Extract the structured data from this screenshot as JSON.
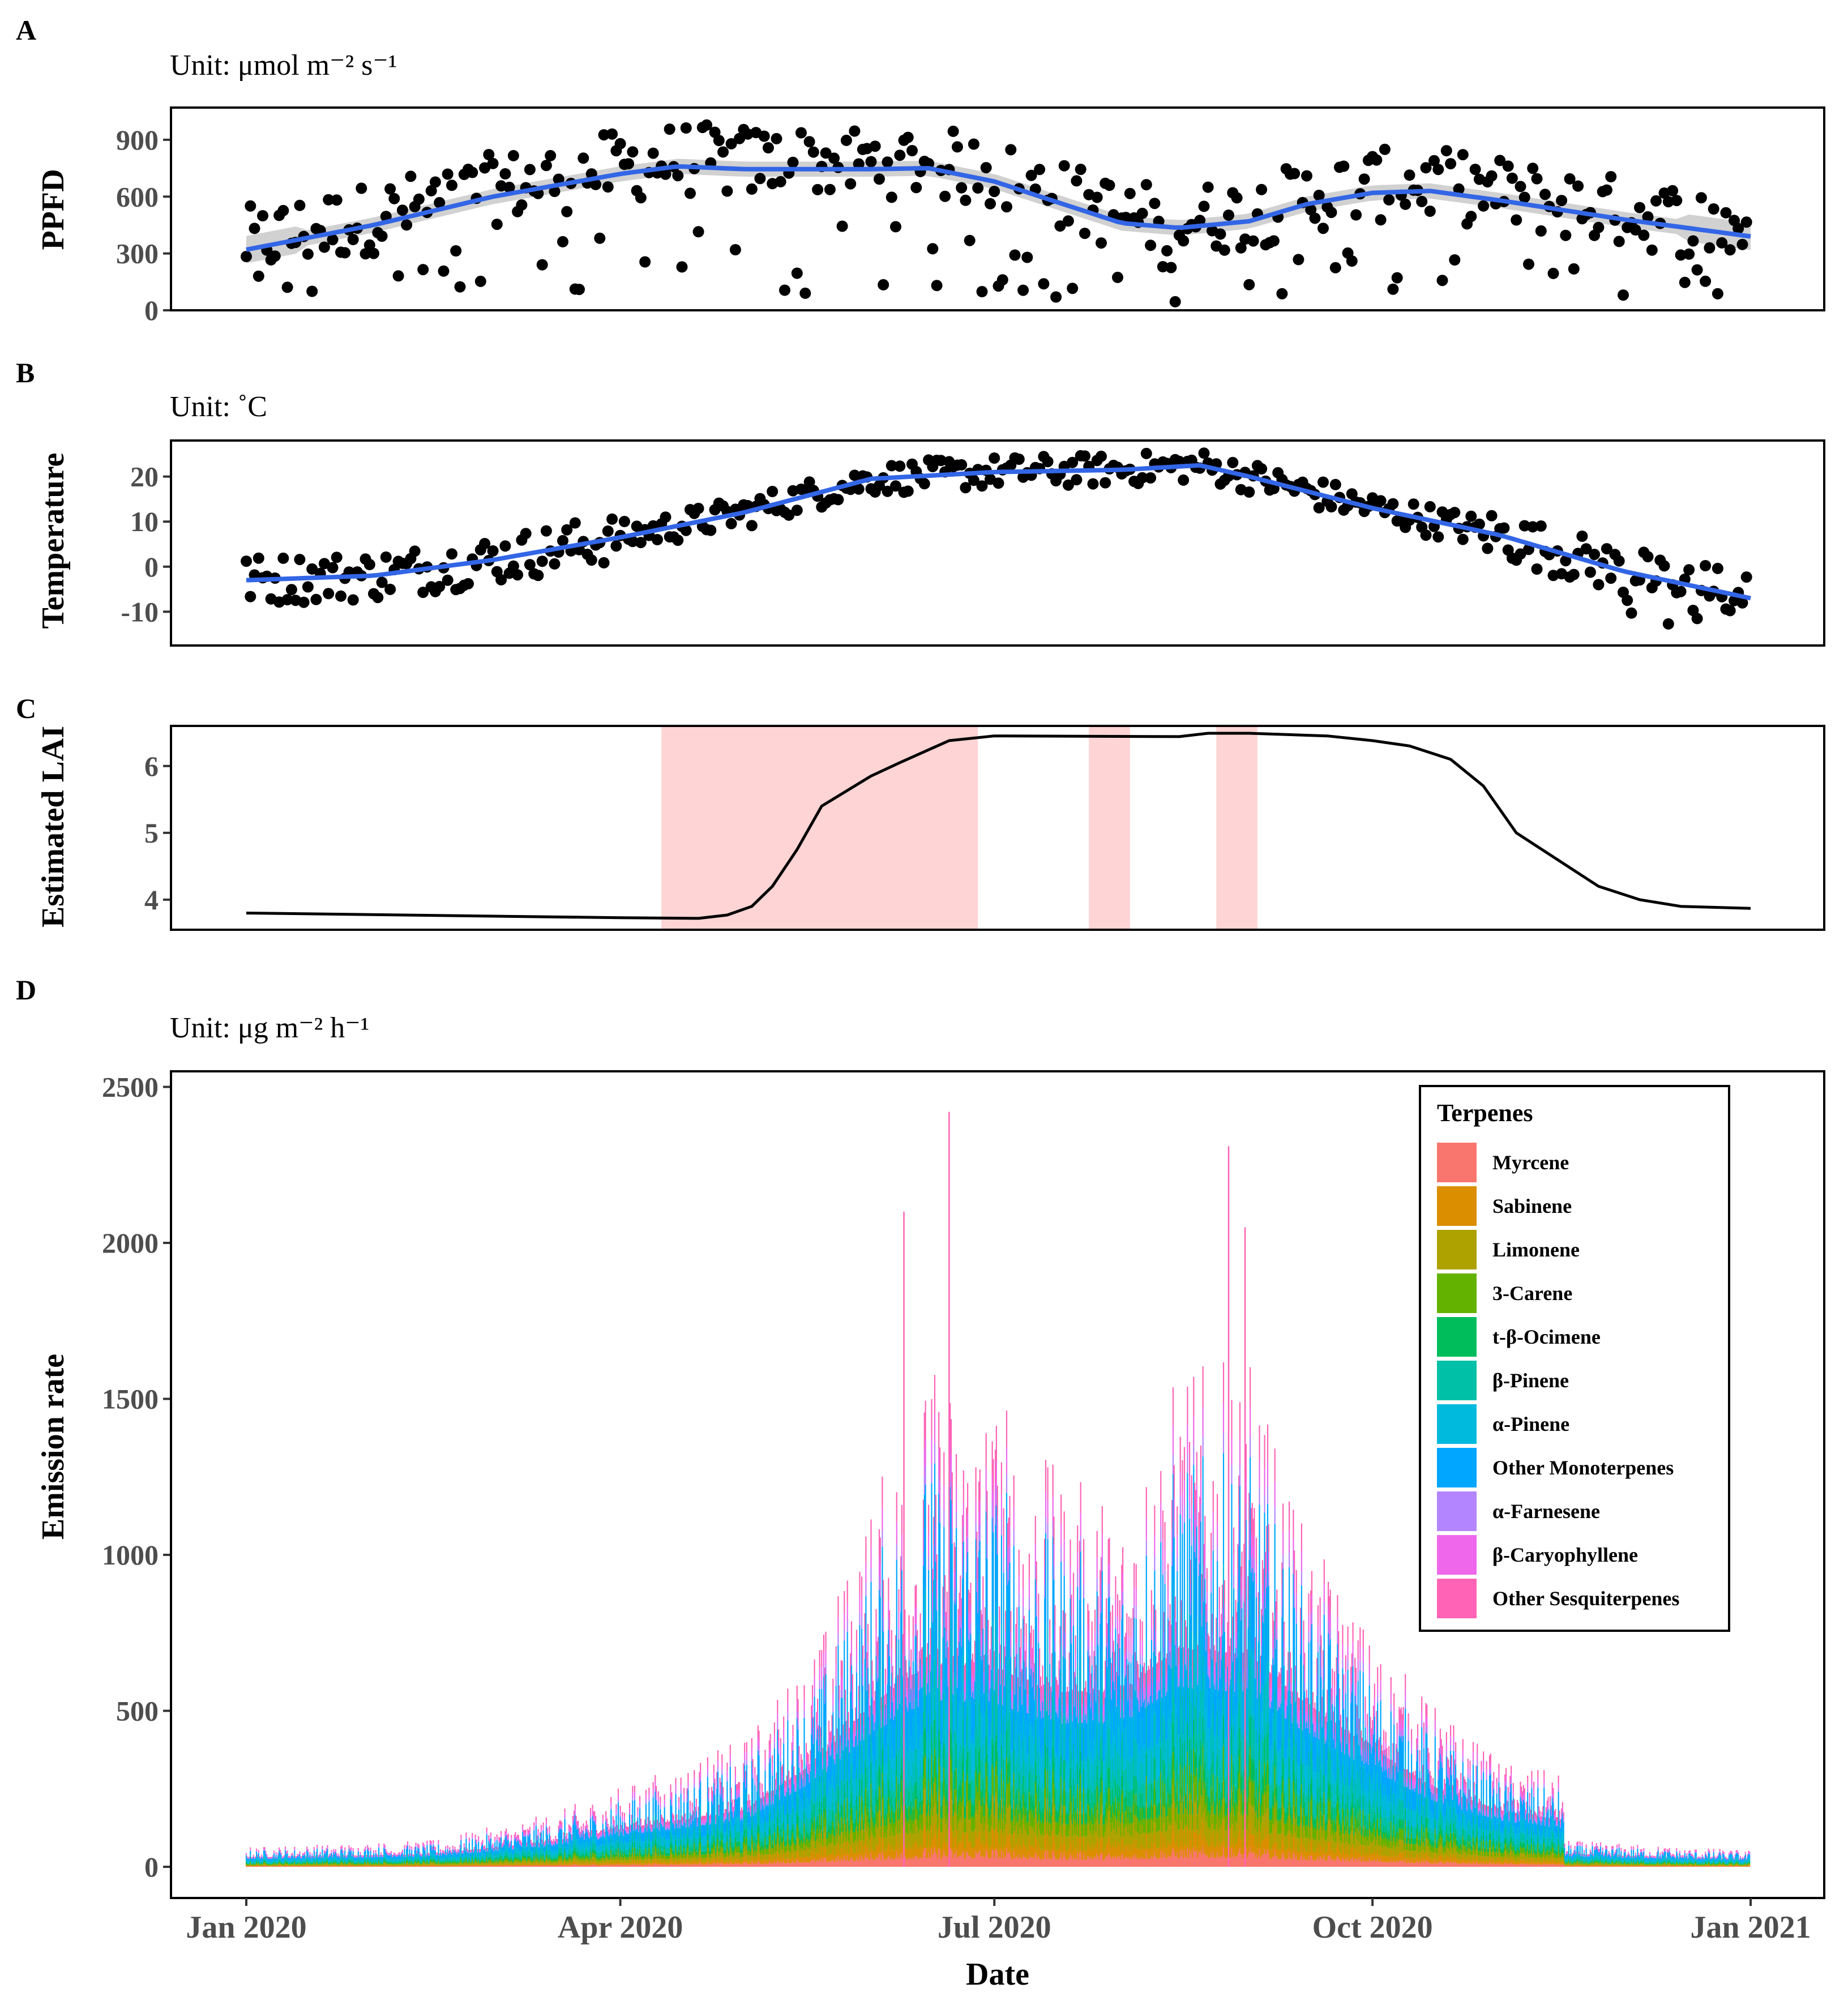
{
  "figure": {
    "panel_labels": [
      "A",
      "B",
      "C",
      "D"
    ],
    "unit_labels": {
      "A": "Unit: μmol m⁻² s⁻¹",
      "B": "Unit: ˚C",
      "D": "Unit: μg m⁻² h⁻¹"
    }
  },
  "chart_data": [
    {
      "panel": "A",
      "type": "scatter",
      "ylabel": "PPFD",
      "ylim": [
        0,
        1070
      ],
      "yticks": [
        0,
        300,
        600,
        900
      ],
      "xlim": [
        "2020-01-01",
        "2021-01-01"
      ],
      "points": "daily mean PPFD, 2020-01-01 to 2020-12-31 (scattered 0-1050)",
      "smooth_x": [
        "2020-01-01",
        "2020-02-01",
        "2020-03-01",
        "2020-04-01",
        "2020-04-15",
        "2020-05-01",
        "2020-06-01",
        "2020-06-15",
        "2020-07-01",
        "2020-07-15",
        "2020-08-01",
        "2020-08-15",
        "2020-09-01",
        "2020-09-15",
        "2020-10-01",
        "2020-10-15",
        "2020-11-01",
        "2020-12-01",
        "2021-01-01"
      ],
      "smooth_y": [
        320,
        450,
        600,
        720,
        760,
        745,
        745,
        750,
        680,
        580,
        460,
        435,
        470,
        560,
        620,
        630,
        580,
        480,
        390
      ],
      "smooth_band": 40,
      "colors": {
        "points": "#000000",
        "smooth": "#3366e6",
        "band": "#cccccc"
      }
    },
    {
      "panel": "B",
      "type": "scatter",
      "ylabel": "Temperature",
      "ylim": [
        -17.5,
        28
      ],
      "yticks": [
        -10,
        0,
        10,
        20
      ],
      "xlim": [
        "2020-01-01",
        "2021-01-01"
      ],
      "smooth_x": [
        "2020-01-01",
        "2020-02-01",
        "2020-03-01",
        "2020-04-01",
        "2020-05-01",
        "2020-06-01",
        "2020-07-01",
        "2020-08-01",
        "2020-08-20",
        "2020-09-01",
        "2020-10-01",
        "2020-11-01",
        "2020-12-01",
        "2021-01-01"
      ],
      "smooth_y": [
        -3,
        -2,
        1.5,
        6.5,
        12,
        19.5,
        21,
        21.5,
        22.5,
        20,
        13,
        7,
        -1,
        -7
      ],
      "colors": {
        "points": "#000000",
        "smooth": "#3366e6"
      }
    },
    {
      "panel": "C",
      "type": "line",
      "ylabel": "Estimated LAI",
      "ylim": [
        3.55,
        6.6
      ],
      "yticks": [
        4,
        5,
        6
      ],
      "xlim": [
        "2020-01-01",
        "2021-01-01"
      ],
      "x": [
        "2020-01-01",
        "2020-04-01",
        "2020-04-20",
        "2020-04-27",
        "2020-05-03",
        "2020-05-08",
        "2020-05-14",
        "2020-05-20",
        "2020-06-01",
        "2020-06-08",
        "2020-06-20",
        "2020-07-01",
        "2020-08-15",
        "2020-08-22",
        "2020-09-01",
        "2020-09-20",
        "2020-10-01",
        "2020-10-10",
        "2020-10-20",
        "2020-10-28",
        "2020-11-05",
        "2020-11-15",
        "2020-11-25",
        "2020-12-05",
        "2020-12-15",
        "2021-01-01"
      ],
      "y": [
        3.8,
        3.73,
        3.72,
        3.77,
        3.9,
        4.2,
        4.75,
        5.4,
        5.85,
        6.05,
        6.38,
        6.45,
        6.44,
        6.49,
        6.49,
        6.45,
        6.38,
        6.3,
        6.1,
        5.7,
        5.0,
        4.6,
        4.2,
        4.0,
        3.9,
        3.87
      ],
      "shaded_ranges": [
        [
          "2020-04-11",
          "2020-06-27"
        ],
        [
          "2020-07-24",
          "2020-08-03"
        ],
        [
          "2020-08-24",
          "2020-09-03"
        ]
      ],
      "colors": {
        "line": "#000000",
        "shade": "#ff6666"
      }
    },
    {
      "panel": "D",
      "type": "area",
      "ylabel": "Emission rate",
      "xlabel": "Date",
      "ylim": [
        -100,
        2550
      ],
      "yticks": [
        0,
        500,
        1000,
        1500,
        2000,
        2500
      ],
      "xticks": [
        "2020-01-01",
        "2020-04-01",
        "2020-07-01",
        "2020-10-01",
        "2021-01-01"
      ],
      "xtick_labels": [
        "Jan 2020",
        "Apr 2020",
        "Jul 2020",
        "Oct 2020",
        "Jan 2021"
      ],
      "xlim": [
        "2020-01-01",
        "2021-01-01"
      ],
      "envelope_x": [
        "2020-01-01",
        "2020-02-15",
        "2020-03-15",
        "2020-04-01",
        "2020-05-01",
        "2020-05-20",
        "2020-06-01",
        "2020-06-15",
        "2020-07-01",
        "2020-07-15",
        "2020-08-01",
        "2020-08-15",
        "2020-09-01",
        "2020-09-15",
        "2020-10-01",
        "2020-10-15",
        "2020-11-01",
        "2020-11-16",
        "2020-11-17",
        "2020-12-15",
        "2021-01-01"
      ],
      "envelope_peak_y": [
        60,
        80,
        160,
        240,
        380,
        700,
        1100,
        1500,
        1450,
        1200,
        1100,
        1500,
        1500,
        1000,
        700,
        500,
        320,
        280,
        80,
        60,
        50
      ],
      "envelope_base_y": [
        30,
        40,
        80,
        120,
        180,
        350,
        520,
        650,
        640,
        560,
        560,
        700,
        680,
        520,
        380,
        260,
        180,
        150,
        40,
        30,
        25
      ],
      "spikes": [
        {
          "x": "2020-06-20",
          "y": 2420
        },
        {
          "x": "2020-08-27",
          "y": 2310
        },
        {
          "x": "2020-06-09",
          "y": 2100
        },
        {
          "x": "2020-08-31",
          "y": 2050
        }
      ],
      "legend": {
        "title": "Terpenes",
        "position": "top-right",
        "entries": [
          {
            "name": "Myrcene",
            "color": "#F8766D"
          },
          {
            "name": "Sabinene",
            "color": "#DB8E00"
          },
          {
            "name": "Limonene",
            "color": "#AEA200"
          },
          {
            "name": "3-Carene",
            "color": "#64B200"
          },
          {
            "name": "t-β-Ocimene",
            "color": "#00BD5C"
          },
          {
            "name": "β-Pinene",
            "color": "#00C1A7"
          },
          {
            "name": "α-Pinene",
            "color": "#00BADE"
          },
          {
            "name": "Other Monoterpenes",
            "color": "#00A6FF"
          },
          {
            "name": "α-Farnesene",
            "color": "#B385FF"
          },
          {
            "name": "β-Caryophyllene",
            "color": "#EF67EB"
          },
          {
            "name": "Other Sesquiterpenes",
            "color": "#FF63B6"
          }
        ]
      }
    }
  ]
}
